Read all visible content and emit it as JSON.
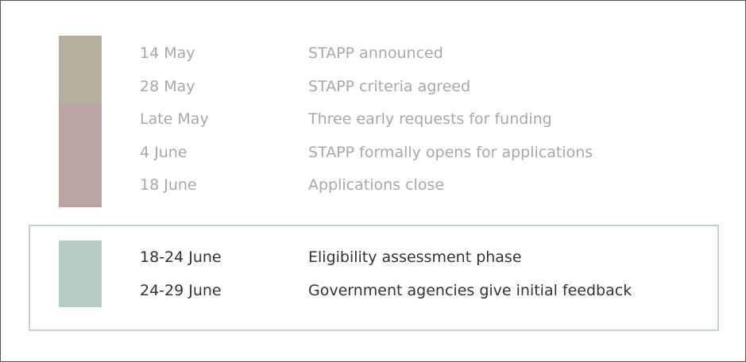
{
  "timeline": {
    "past": [
      {
        "date": "14 May",
        "event": "STAPP announced"
      },
      {
        "date": "28 May",
        "event": "STAPP criteria agreed"
      },
      {
        "date": "Late May",
        "event": "Three early requests for funding"
      },
      {
        "date": "4 June",
        "event": "STAPP formally opens for applications"
      },
      {
        "date": "18 June",
        "event": "Applications close"
      }
    ],
    "current": [
      {
        "date": "18-24 June",
        "event": "Eligibility assessment phase"
      },
      {
        "date": "24-29 June",
        "event": "Government agencies give initial feedback"
      }
    ]
  }
}
